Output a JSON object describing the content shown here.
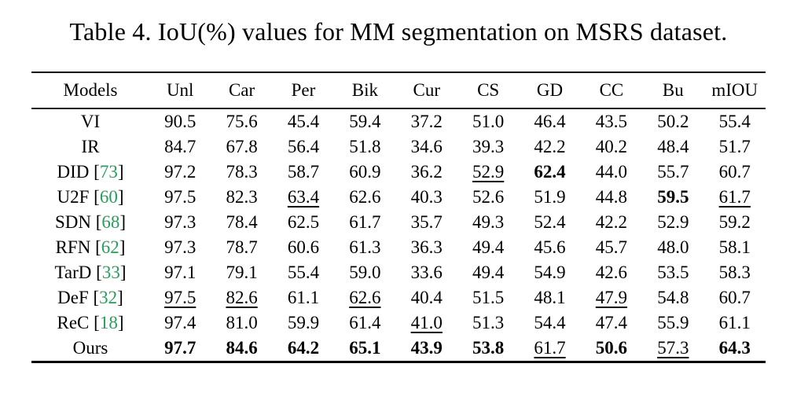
{
  "title": "Table 4. IoU(%) values for MM segmentation on MSRS dataset.",
  "colors": {
    "citation_green": "#22a05c"
  },
  "table": {
    "columns": [
      "Models",
      "Unl",
      "Car",
      "Per",
      "Bik",
      "Cur",
      "CS",
      "GD",
      "CC",
      "Bu",
      "mIOU"
    ],
    "rows": [
      {
        "model": "VI",
        "cite": null,
        "values": [
          "90.5",
          "75.6",
          "45.4",
          "59.4",
          "37.2",
          "51.0",
          "46.4",
          "43.5",
          "50.2",
          "55.4"
        ],
        "bold": [],
        "underline": []
      },
      {
        "model": "IR",
        "cite": null,
        "values": [
          "84.7",
          "67.8",
          "56.4",
          "51.8",
          "34.6",
          "39.3",
          "42.2",
          "40.2",
          "48.4",
          "51.7"
        ],
        "bold": [],
        "underline": []
      },
      {
        "model": "DID",
        "cite": "73",
        "values": [
          "97.2",
          "78.3",
          "58.7",
          "60.9",
          "36.2",
          "52.9",
          "62.4",
          "44.0",
          "55.7",
          "60.7"
        ],
        "bold": [
          6
        ],
        "underline": [
          5
        ]
      },
      {
        "model": "U2F",
        "cite": "60",
        "values": [
          "97.5",
          "82.3",
          "63.4",
          "62.6",
          "40.3",
          "52.6",
          "51.9",
          "44.8",
          "59.5",
          "61.7"
        ],
        "bold": [
          8
        ],
        "underline": [
          2,
          9
        ]
      },
      {
        "model": "SDN",
        "cite": "68",
        "values": [
          "97.3",
          "78.4",
          "62.5",
          "61.7",
          "35.7",
          "49.3",
          "52.4",
          "42.2",
          "52.9",
          "59.2"
        ],
        "bold": [],
        "underline": []
      },
      {
        "model": "RFN",
        "cite": "62",
        "values": [
          "97.3",
          "78.7",
          "60.6",
          "61.3",
          "36.3",
          "49.4",
          "45.6",
          "45.7",
          "48.0",
          "58.1"
        ],
        "bold": [],
        "underline": []
      },
      {
        "model": "TarD",
        "cite": "33",
        "values": [
          "97.1",
          "79.1",
          "55.4",
          "59.0",
          "33.6",
          "49.4",
          "54.9",
          "42.6",
          "53.5",
          "58.3"
        ],
        "bold": [],
        "underline": []
      },
      {
        "model": "DeF",
        "cite": "32",
        "values": [
          "97.5",
          "82.6",
          "61.1",
          "62.6",
          "40.4",
          "51.5",
          "48.1",
          "47.9",
          "54.8",
          "60.7"
        ],
        "bold": [],
        "underline": [
          0,
          1,
          3,
          7
        ]
      },
      {
        "model": "ReC",
        "cite": "18",
        "values": [
          "97.4",
          "81.0",
          "59.9",
          "61.4",
          "41.0",
          "51.3",
          "54.4",
          "47.4",
          "55.9",
          "61.1"
        ],
        "bold": [],
        "underline": [
          4
        ]
      },
      {
        "model": "Ours",
        "cite": null,
        "values": [
          "97.7",
          "84.6",
          "64.2",
          "65.1",
          "43.9",
          "53.8",
          "61.7",
          "50.6",
          "57.3",
          "64.3"
        ],
        "bold": [
          0,
          1,
          2,
          3,
          4,
          5,
          7,
          9
        ],
        "underline": [
          6,
          8
        ]
      }
    ]
  }
}
